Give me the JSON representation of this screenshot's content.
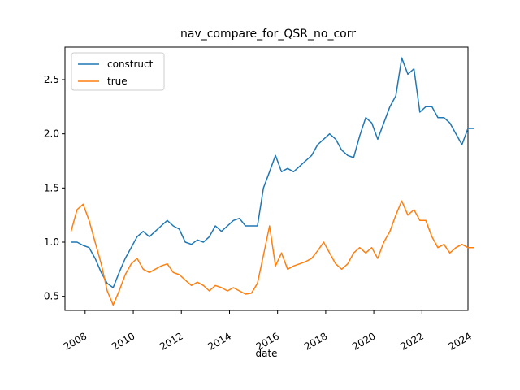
{
  "chart_data": {
    "type": "line",
    "title": "nav_compare_for_QSR_no_corr",
    "xlabel": "date",
    "ylabel": "",
    "xlim": [
      "2007-03-01",
      "2023-12-01"
    ],
    "ylim": [
      0.37,
      2.8
    ],
    "x_ticks": [
      "2008",
      "2010",
      "2012",
      "2014",
      "2016",
      "2018",
      "2020",
      "2022",
      "2024"
    ],
    "y_ticks": [
      "0.5",
      "1.0",
      "1.5",
      "2.0",
      "2.5"
    ],
    "grid": false,
    "legend_position": "upper left",
    "series": [
      {
        "name": "construct",
        "color": "#1f77b4",
        "points": [
          [
            "2007-06-01",
            1.0
          ],
          [
            "2007-09-01",
            1.0
          ],
          [
            "2007-12-01",
            0.97
          ],
          [
            "2008-03-01",
            0.95
          ],
          [
            "2008-06-01",
            0.85
          ],
          [
            "2008-09-01",
            0.72
          ],
          [
            "2008-12-01",
            0.62
          ],
          [
            "2009-03-01",
            0.58
          ],
          [
            "2009-06-01",
            0.72
          ],
          [
            "2009-09-01",
            0.85
          ],
          [
            "2009-12-01",
            0.95
          ],
          [
            "2010-03-01",
            1.05
          ],
          [
            "2010-06-01",
            1.1
          ],
          [
            "2010-09-01",
            1.05
          ],
          [
            "2010-12-01",
            1.1
          ],
          [
            "2011-03-01",
            1.15
          ],
          [
            "2011-06-01",
            1.2
          ],
          [
            "2011-09-01",
            1.15
          ],
          [
            "2011-12-01",
            1.12
          ],
          [
            "2012-03-01",
            1.0
          ],
          [
            "2012-06-01",
            0.98
          ],
          [
            "2012-09-01",
            1.02
          ],
          [
            "2012-12-01",
            1.0
          ],
          [
            "2013-03-01",
            1.05
          ],
          [
            "2013-06-01",
            1.15
          ],
          [
            "2013-09-01",
            1.1
          ],
          [
            "2013-12-01",
            1.15
          ],
          [
            "2014-03-01",
            1.2
          ],
          [
            "2014-06-01",
            1.22
          ],
          [
            "2014-09-01",
            1.15
          ],
          [
            "2014-12-01",
            1.15
          ],
          [
            "2015-03-01",
            1.15
          ],
          [
            "2015-06-01",
            1.5
          ],
          [
            "2015-09-01",
            1.65
          ],
          [
            "2015-12-01",
            1.8
          ],
          [
            "2016-03-01",
            1.65
          ],
          [
            "2016-06-01",
            1.68
          ],
          [
            "2016-09-01",
            1.65
          ],
          [
            "2016-12-01",
            1.7
          ],
          [
            "2017-03-01",
            1.75
          ],
          [
            "2017-06-01",
            1.8
          ],
          [
            "2017-09-01",
            1.9
          ],
          [
            "2017-12-01",
            1.95
          ],
          [
            "2018-03-01",
            2.0
          ],
          [
            "2018-06-01",
            1.95
          ],
          [
            "2018-09-01",
            1.85
          ],
          [
            "2018-12-01",
            1.8
          ],
          [
            "2019-03-01",
            1.78
          ],
          [
            "2019-06-01",
            1.98
          ],
          [
            "2019-09-01",
            2.15
          ],
          [
            "2019-12-01",
            2.1
          ],
          [
            "2020-03-01",
            1.95
          ],
          [
            "2020-06-01",
            2.1
          ],
          [
            "2020-09-01",
            2.25
          ],
          [
            "2020-12-01",
            2.35
          ],
          [
            "2021-03-01",
            2.7
          ],
          [
            "2021-06-01",
            2.55
          ],
          [
            "2021-09-01",
            2.6
          ],
          [
            "2021-12-01",
            2.2
          ],
          [
            "2022-03-01",
            2.25
          ],
          [
            "2022-06-01",
            2.25
          ],
          [
            "2022-09-01",
            2.15
          ],
          [
            "2022-12-01",
            2.15
          ],
          [
            "2023-03-01",
            2.1
          ],
          [
            "2023-06-01",
            2.0
          ],
          [
            "2023-09-01",
            1.9
          ],
          [
            "2023-12-01",
            2.05
          ],
          [
            "2024-03-01",
            2.05
          ]
        ]
      },
      {
        "name": "true",
        "color": "#ff7f0e",
        "points": [
          [
            "2007-06-01",
            1.1
          ],
          [
            "2007-09-01",
            1.3
          ],
          [
            "2007-12-01",
            1.35
          ],
          [
            "2008-03-01",
            1.2
          ],
          [
            "2008-06-01",
            1.0
          ],
          [
            "2008-09-01",
            0.8
          ],
          [
            "2008-12-01",
            0.55
          ],
          [
            "2009-03-01",
            0.42
          ],
          [
            "2009-06-01",
            0.55
          ],
          [
            "2009-09-01",
            0.7
          ],
          [
            "2009-12-01",
            0.8
          ],
          [
            "2010-03-01",
            0.85
          ],
          [
            "2010-06-01",
            0.75
          ],
          [
            "2010-09-01",
            0.72
          ],
          [
            "2010-12-01",
            0.75
          ],
          [
            "2011-03-01",
            0.78
          ],
          [
            "2011-06-01",
            0.8
          ],
          [
            "2011-09-01",
            0.72
          ],
          [
            "2011-12-01",
            0.7
          ],
          [
            "2012-03-01",
            0.65
          ],
          [
            "2012-06-01",
            0.6
          ],
          [
            "2012-09-01",
            0.63
          ],
          [
            "2012-12-01",
            0.6
          ],
          [
            "2013-03-01",
            0.55
          ],
          [
            "2013-06-01",
            0.6
          ],
          [
            "2013-09-01",
            0.58
          ],
          [
            "2013-12-01",
            0.55
          ],
          [
            "2014-03-01",
            0.58
          ],
          [
            "2014-06-01",
            0.55
          ],
          [
            "2014-09-01",
            0.52
          ],
          [
            "2014-12-01",
            0.53
          ],
          [
            "2015-03-01",
            0.62
          ],
          [
            "2015-06-01",
            0.88
          ],
          [
            "2015-09-01",
            1.15
          ],
          [
            "2015-12-01",
            0.78
          ],
          [
            "2016-03-01",
            0.9
          ],
          [
            "2016-06-01",
            0.75
          ],
          [
            "2016-09-01",
            0.78
          ],
          [
            "2016-12-01",
            0.8
          ],
          [
            "2017-03-01",
            0.82
          ],
          [
            "2017-06-01",
            0.85
          ],
          [
            "2017-09-01",
            0.92
          ],
          [
            "2017-12-01",
            1.0
          ],
          [
            "2018-03-01",
            0.9
          ],
          [
            "2018-06-01",
            0.8
          ],
          [
            "2018-09-01",
            0.75
          ],
          [
            "2018-12-01",
            0.8
          ],
          [
            "2019-03-01",
            0.9
          ],
          [
            "2019-06-01",
            0.95
          ],
          [
            "2019-09-01",
            0.9
          ],
          [
            "2019-12-01",
            0.95
          ],
          [
            "2020-03-01",
            0.85
          ],
          [
            "2020-06-01",
            1.0
          ],
          [
            "2020-09-01",
            1.1
          ],
          [
            "2020-12-01",
            1.25
          ],
          [
            "2021-03-01",
            1.38
          ],
          [
            "2021-06-01",
            1.25
          ],
          [
            "2021-09-01",
            1.3
          ],
          [
            "2021-12-01",
            1.2
          ],
          [
            "2022-03-01",
            1.2
          ],
          [
            "2022-06-01",
            1.05
          ],
          [
            "2022-09-01",
            0.95
          ],
          [
            "2022-12-01",
            0.98
          ],
          [
            "2023-03-01",
            0.9
          ],
          [
            "2023-06-01",
            0.95
          ],
          [
            "2023-09-01",
            0.98
          ],
          [
            "2023-12-01",
            0.95
          ],
          [
            "2024-03-01",
            0.95
          ]
        ]
      }
    ]
  }
}
